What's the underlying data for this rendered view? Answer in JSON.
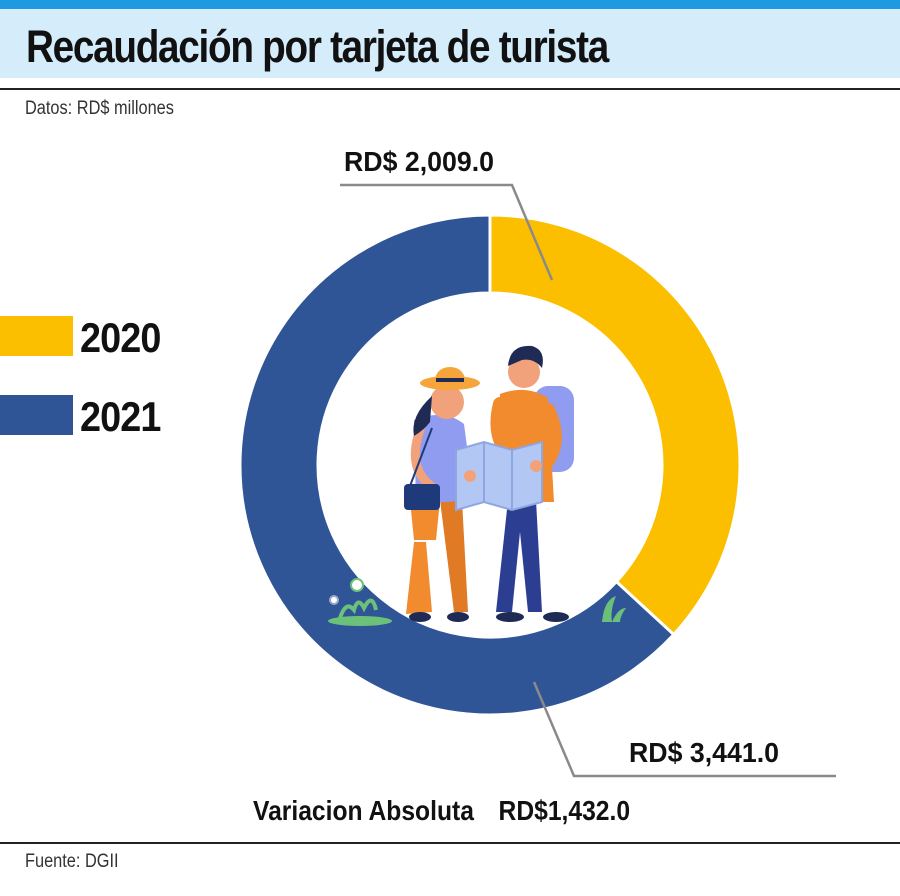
{
  "header": {
    "title": "Recaudación por tarjeta de turista",
    "subtitle": "Datos: RD$ millones",
    "source": "Fuente: DGII"
  },
  "colors": {
    "accent_stripe": "#1e9be0",
    "title_band": "#d5ecfa",
    "series_2020": "#fbbf00",
    "series_2021": "#2f5597"
  },
  "legend": [
    {
      "label": "2020",
      "color": "#fbbf00"
    },
    {
      "label": "2021",
      "color": "#2f5597"
    }
  ],
  "chart_data": {
    "type": "pie",
    "variant": "donut",
    "categories": [
      "2020",
      "2021"
    ],
    "values": [
      2009.0,
      3441.0
    ],
    "colors": [
      "#fbbf00",
      "#2f5597"
    ],
    "data_labels": [
      "RD$ 2,009.0",
      "RD$ 3,441.0"
    ],
    "legend_position": "left",
    "center_illustration": "tourist-couple-with-map"
  },
  "footer_stat": {
    "label": "Variacion Absoluta",
    "value": "RD$1,432.0"
  }
}
